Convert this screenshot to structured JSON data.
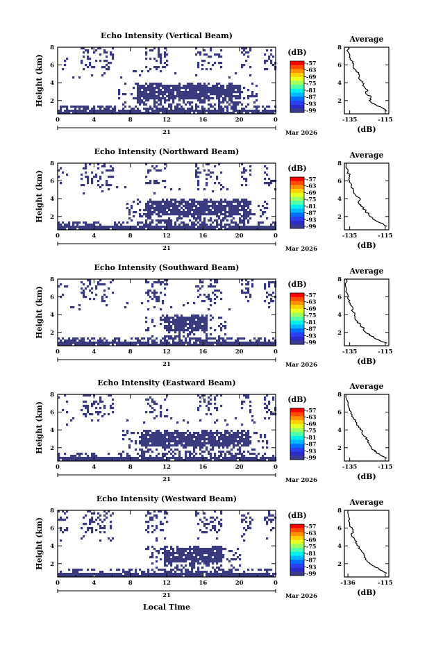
{
  "figure": {
    "xlabel": "Local Time",
    "date_label": "Mar 2026",
    "day_label": "21",
    "ylabel": "Height (km)",
    "unit_label": "(dB)",
    "avg_title": "Average",
    "avg_xlabel": "(dB)"
  },
  "colorbar": {
    "ticks": [
      "-57",
      "-63",
      "-69",
      "-75",
      "-81",
      "-87",
      "-93",
      "-99"
    ],
    "colors": [
      "#ff0000",
      "#ff4a00",
      "#ff9000",
      "#ffd000",
      "#e8ff20",
      "#a0ff60",
      "#50ffa8",
      "#00f0f0",
      "#00b8ff",
      "#0070ff",
      "#2a40f0",
      "#2a2ac8",
      "#3a3a90"
    ]
  },
  "chart_data": [
    {
      "type": "heatmap",
      "title": "Echo Intensity (Vertical Beam)",
      "xlabel": "Local Time",
      "ylabel": "Height (km)",
      "x_ticks": [
        "0",
        "4",
        "8",
        "12",
        "16",
        "20",
        "0"
      ],
      "y_ticks": [
        "2",
        "4",
        "6",
        "8"
      ],
      "xlim": [
        0,
        24
      ],
      "ylim": [
        0.5,
        8
      ],
      "value_seen": -99,
      "avg": {
        "type": "line",
        "x_ticks": [
          "-135",
          "-115"
        ],
        "y_ticks": [
          "2",
          "4",
          "6",
          "8"
        ],
        "xlim": [
          -138,
          -113
        ],
        "ylim": [
          0.5,
          8
        ],
        "points": [
          [
            -114,
            0.8
          ],
          [
            -117,
            1.2
          ],
          [
            -121,
            1.6
          ],
          [
            -124,
            2.0
          ],
          [
            -123,
            2.4
          ],
          [
            -126,
            2.8
          ],
          [
            -125,
            3.2
          ],
          [
            -127,
            3.6
          ],
          [
            -128,
            4.0
          ],
          [
            -130,
            4.5
          ],
          [
            -130,
            5.0
          ],
          [
            -132,
            5.5
          ],
          [
            -133,
            6.0
          ],
          [
            -134,
            6.5
          ],
          [
            -135,
            7.0
          ],
          [
            -136,
            7.5
          ],
          [
            -136,
            8.0
          ]
        ]
      }
    },
    {
      "type": "heatmap",
      "title": "Echo Intensity (Northward Beam)",
      "xlabel": "Local Time",
      "ylabel": "Height (km)",
      "x_ticks": [
        "0",
        "4",
        "8",
        "12",
        "16",
        "20",
        "0"
      ],
      "y_ticks": [
        "2",
        "4",
        "6",
        "8"
      ],
      "xlim": [
        0,
        24
      ],
      "ylim": [
        0.5,
        8
      ],
      "value_seen": -99,
      "avg": {
        "type": "line",
        "x_ticks": [
          "-135",
          "-115"
        ],
        "y_ticks": [
          "2",
          "4",
          "6",
          "8"
        ],
        "xlim": [
          -138,
          -113
        ],
        "ylim": [
          0.5,
          8
        ],
        "points": [
          [
            -114,
            0.9
          ],
          [
            -118,
            1.3
          ],
          [
            -122,
            1.7
          ],
          [
            -124,
            2.1
          ],
          [
            -126,
            2.6
          ],
          [
            -128,
            3.1
          ],
          [
            -130,
            3.5
          ],
          [
            -129,
            4.0
          ],
          [
            -132,
            4.5
          ],
          [
            -133,
            5.0
          ],
          [
            -134,
            5.5
          ],
          [
            -135,
            6.0
          ],
          [
            -135,
            6.5
          ],
          [
            -136,
            7.0
          ],
          [
            -137,
            8.0
          ]
        ]
      }
    },
    {
      "type": "heatmap",
      "title": "Echo Intensity (Southward Beam)",
      "xlabel": "Local Time",
      "ylabel": "Height (km)",
      "x_ticks": [
        "0",
        "4",
        "8",
        "12",
        "16",
        "20",
        "0"
      ],
      "y_ticks": [
        "2",
        "4",
        "6",
        "8"
      ],
      "xlim": [
        0,
        24
      ],
      "ylim": [
        0.5,
        8
      ],
      "value_seen": -99,
      "avg": {
        "type": "line",
        "x_ticks": [
          "-135",
          "-115"
        ],
        "y_ticks": [
          "2",
          "4",
          "6",
          "8"
        ],
        "xlim": [
          -138,
          -113
        ],
        "ylim": [
          0.5,
          8
        ],
        "points": [
          [
            -114,
            0.8
          ],
          [
            -119,
            1.2
          ],
          [
            -123,
            1.6
          ],
          [
            -126,
            2.0
          ],
          [
            -127,
            2.4
          ],
          [
            -129,
            2.9
          ],
          [
            -131,
            3.3
          ],
          [
            -132,
            3.8
          ],
          [
            -133,
            4.3
          ],
          [
            -134,
            5.0
          ],
          [
            -135,
            5.6
          ],
          [
            -136,
            6.2
          ],
          [
            -137,
            7.0
          ],
          [
            -137,
            8.0
          ]
        ]
      }
    },
    {
      "type": "heatmap",
      "title": "Echo Intensity (Eastward Beam)",
      "xlabel": "Local Time",
      "ylabel": "Height (km)",
      "x_ticks": [
        "0",
        "4",
        "8",
        "12",
        "16",
        "20",
        "0"
      ],
      "y_ticks": [
        "2",
        "4",
        "6",
        "8"
      ],
      "xlim": [
        0,
        24
      ],
      "ylim": [
        0.5,
        8
      ],
      "value_seen": -99,
      "avg": {
        "type": "line",
        "x_ticks": [
          "-135",
          "-115"
        ],
        "y_ticks": [
          "2",
          "4",
          "6",
          "8"
        ],
        "xlim": [
          -138,
          -113
        ],
        "ylim": [
          0.5,
          8
        ],
        "points": [
          [
            -114,
            0.8
          ],
          [
            -118,
            1.2
          ],
          [
            -121,
            1.6
          ],
          [
            -123,
            2.0
          ],
          [
            -124,
            2.4
          ],
          [
            -125,
            2.9
          ],
          [
            -127,
            3.3
          ],
          [
            -128,
            3.8
          ],
          [
            -130,
            4.3
          ],
          [
            -131,
            4.8
          ],
          [
            -133,
            5.4
          ],
          [
            -134,
            6.0
          ],
          [
            -136,
            6.8
          ],
          [
            -137,
            8.0
          ]
        ]
      }
    },
    {
      "type": "heatmap",
      "title": "Echo Intensity (Westward Beam)",
      "xlabel": "Local Time",
      "ylabel": "Height (km)",
      "x_ticks": [
        "0",
        "4",
        "8",
        "12",
        "16",
        "20",
        "0"
      ],
      "y_ticks": [
        "2",
        "4",
        "6",
        "8"
      ],
      "xlim": [
        0,
        24
      ],
      "ylim": [
        0.5,
        8
      ],
      "value_seen": -99,
      "avg": {
        "type": "line",
        "x_ticks": [
          "-136",
          "-115"
        ],
        "y_ticks": [
          "2",
          "4",
          "6",
          "8"
        ],
        "xlim": [
          -138,
          -113
        ],
        "ylim": [
          0.5,
          8
        ],
        "points": [
          [
            -114,
            0.9
          ],
          [
            -118,
            1.3
          ],
          [
            -121,
            1.7
          ],
          [
            -124,
            2.1
          ],
          [
            -126,
            2.6
          ],
          [
            -127,
            3.1
          ],
          [
            -129,
            3.6
          ],
          [
            -131,
            4.1
          ],
          [
            -132,
            4.6
          ],
          [
            -134,
            5.2
          ],
          [
            -133,
            5.8
          ],
          [
            -135,
            6.3
          ],
          [
            -135,
            7.0
          ],
          [
            -136,
            8.0
          ]
        ]
      }
    }
  ]
}
